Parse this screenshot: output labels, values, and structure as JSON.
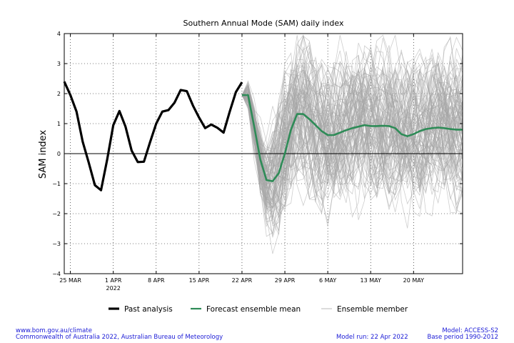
{
  "chart_data": {
    "type": "line",
    "title": "Southern Annual Mode (SAM) daily index",
    "ylabel": "SAM index",
    "xlabel": "",
    "ylim": [
      -4,
      4
    ],
    "yticks": [
      {
        "value": 4,
        "label": "4"
      },
      {
        "value": 3,
        "label": "3"
      },
      {
        "value": 2,
        "label": "2"
      },
      {
        "value": 1,
        "label": "1"
      },
      {
        "value": 0,
        "label": "0"
      },
      {
        "value": -1,
        "label": "−1"
      },
      {
        "value": -2,
        "label": "−2"
      },
      {
        "value": -3,
        "label": "−3"
      },
      {
        "value": -4,
        "label": "−4"
      }
    ],
    "xrange": [
      "2022-03-24",
      "2022-05-28"
    ],
    "xticks": [
      {
        "date": "2022-03-25",
        "label": "25 MAR",
        "sublabel": ""
      },
      {
        "date": "2022-04-01",
        "label": "1 APR",
        "sublabel": "2022"
      },
      {
        "date": "2022-04-08",
        "label": "8 APR",
        "sublabel": ""
      },
      {
        "date": "2022-04-15",
        "label": "15 APR",
        "sublabel": ""
      },
      {
        "date": "2022-04-22",
        "label": "22 APR",
        "sublabel": ""
      },
      {
        "date": "2022-04-29",
        "label": "29 APR",
        "sublabel": ""
      },
      {
        "date": "2022-05-06",
        "label": "6 MAY",
        "sublabel": ""
      },
      {
        "date": "2022-05-13",
        "label": "13 MAY",
        "sublabel": ""
      },
      {
        "date": "2022-05-20",
        "label": "20 MAY",
        "sublabel": ""
      }
    ],
    "grid": true,
    "zero_line": true,
    "legend_position": "bottom-center",
    "series": [
      {
        "name": "Past analysis",
        "color": "#000000",
        "x": [
          "2022-03-24",
          "2022-03-25",
          "2022-03-26",
          "2022-03-27",
          "2022-03-28",
          "2022-03-29",
          "2022-03-30",
          "2022-03-31",
          "2022-04-01",
          "2022-04-02",
          "2022-04-03",
          "2022-04-04",
          "2022-04-05",
          "2022-04-06",
          "2022-04-07",
          "2022-04-08",
          "2022-04-09",
          "2022-04-10",
          "2022-04-11",
          "2022-04-12",
          "2022-04-13",
          "2022-04-14",
          "2022-04-15",
          "2022-04-16",
          "2022-04-17",
          "2022-04-18",
          "2022-04-19",
          "2022-04-20",
          "2022-04-21",
          "2022-04-22"
        ],
        "y": [
          2.4,
          1.95,
          1.4,
          0.4,
          -0.3,
          -1.05,
          -1.22,
          -0.2,
          0.95,
          1.42,
          0.9,
          0.1,
          -0.28,
          -0.27,
          0.38,
          1.0,
          1.4,
          1.45,
          1.7,
          2.12,
          2.08,
          1.6,
          1.2,
          0.85,
          0.97,
          0.86,
          0.7,
          1.4,
          2.05,
          2.38
        ]
      },
      {
        "name": "Forecast ensemble mean",
        "color": "#2e8b57",
        "x": [
          "2022-04-22",
          "2022-04-23",
          "2022-04-24",
          "2022-04-25",
          "2022-04-26",
          "2022-04-27",
          "2022-04-28",
          "2022-04-29",
          "2022-04-30",
          "2022-05-01",
          "2022-05-02",
          "2022-05-03",
          "2022-05-04",
          "2022-05-05",
          "2022-05-06",
          "2022-05-07",
          "2022-05-08",
          "2022-05-09",
          "2022-05-10",
          "2022-05-11",
          "2022-05-12",
          "2022-05-13",
          "2022-05-14",
          "2022-05-15",
          "2022-05-16",
          "2022-05-17",
          "2022-05-18",
          "2022-05-19",
          "2022-05-20",
          "2022-05-21",
          "2022-05-22",
          "2022-05-23",
          "2022-05-24",
          "2022-05-25",
          "2022-05-26",
          "2022-05-27",
          "2022-05-28"
        ],
        "y": [
          1.95,
          1.95,
          0.9,
          -0.2,
          -0.88,
          -0.92,
          -0.65,
          0.0,
          0.8,
          1.32,
          1.32,
          1.15,
          0.95,
          0.75,
          0.62,
          0.62,
          0.7,
          0.78,
          0.85,
          0.9,
          0.95,
          0.92,
          0.92,
          0.93,
          0.92,
          0.85,
          0.65,
          0.58,
          0.65,
          0.75,
          0.82,
          0.85,
          0.87,
          0.85,
          0.82,
          0.8,
          0.8
        ]
      },
      {
        "name": "Ensemble member",
        "color": "#a6a6a6",
        "member_count": 99,
        "forecast_start": "2022-04-22",
        "forecast_end": "2022-05-28"
      }
    ],
    "legend": [
      {
        "label": "Past analysis",
        "color": "#000000",
        "style": "thick"
      },
      {
        "label": "Forecast ensemble mean",
        "color": "#2e8b57",
        "style": "medium"
      },
      {
        "label": "Ensemble member",
        "color": "#a6a6a6",
        "style": "thin"
      }
    ]
  },
  "footer": {
    "url": "www.bom.gov.au/climate",
    "copyright": "Commonwealth of Australia 2022, Australian Bureau of Meteorology",
    "model": "Model: ACCESS-S2",
    "model_run": "Model run: 22 Apr 2022",
    "base_period": "Base period 1990-2012"
  }
}
